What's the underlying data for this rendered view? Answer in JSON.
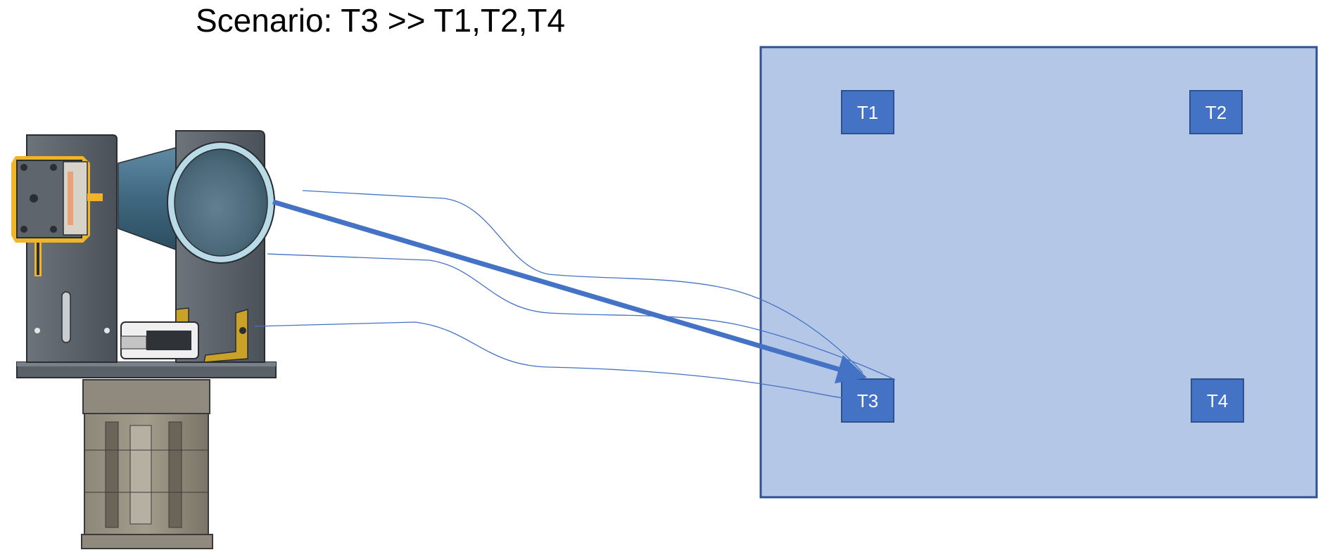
{
  "title": "Scenario: T3 >> T1,T2,T4",
  "colors": {
    "room_fill": "#b4c7e7",
    "room_stroke": "#2f528f",
    "target_fill": "#4472c4",
    "beam": "#4472c4",
    "gimbal_plate": "#555d66",
    "motor_highlight": "#f0b429"
  },
  "targets": [
    {
      "id": "T1",
      "label": "T1"
    },
    {
      "id": "T2",
      "label": "T2"
    },
    {
      "id": "T3",
      "label": "T3"
    },
    {
      "id": "T4",
      "label": "T4"
    }
  ],
  "active_target": "T3"
}
